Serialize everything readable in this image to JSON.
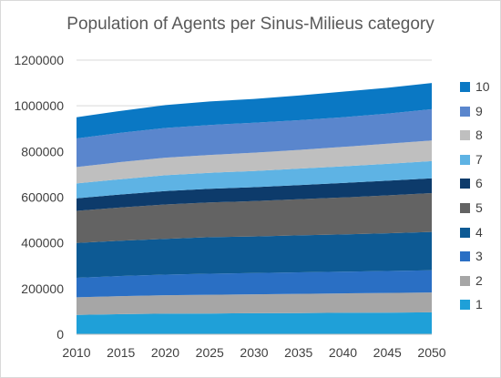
{
  "chart_data": {
    "type": "area",
    "stacked": true,
    "title": "Population of Agents per Sinus-Milieus category",
    "xlabel": "",
    "ylabel": "",
    "x": [
      2010,
      2015,
      2020,
      2025,
      2030,
      2035,
      2040,
      2045,
      2050
    ],
    "xticks": [
      "2010",
      "2015",
      "2020",
      "2025",
      "2030",
      "2035",
      "2040",
      "2045",
      "2050"
    ],
    "yticks": [
      "0",
      "200000",
      "400000",
      "600000",
      "800000",
      "1000000",
      "1200000"
    ],
    "ylim": [
      0,
      1200000
    ],
    "grid": true,
    "legend_position": "right",
    "series": [
      {
        "name": "1",
        "color": "#1fa0d8",
        "values": [
          85000,
          88000,
          90000,
          91000,
          92000,
          93000,
          94000,
          95000,
          96000
        ]
      },
      {
        "name": "2",
        "color": "#a6a6a6",
        "values": [
          77000,
          79000,
          81000,
          82000,
          83000,
          84000,
          85000,
          86000,
          87000
        ]
      },
      {
        "name": "3",
        "color": "#2a6fc4",
        "values": [
          85000,
          88000,
          90000,
          92000,
          93000,
          94000,
          95000,
          96000,
          97000
        ]
      },
      {
        "name": "4",
        "color": "#0d5a94",
        "values": [
          153000,
          155000,
          157000,
          160000,
          160000,
          162000,
          163000,
          165000,
          168000
        ]
      },
      {
        "name": "5",
        "color": "#636363",
        "values": [
          140000,
          145000,
          150000,
          152000,
          155000,
          158000,
          162000,
          166000,
          170000
        ]
      },
      {
        "name": "6",
        "color": "#0d3b6b",
        "values": [
          55000,
          57000,
          59000,
          60000,
          61000,
          62000,
          63000,
          64000,
          65000
        ]
      },
      {
        "name": "7",
        "color": "#5eb3e4",
        "values": [
          65000,
          67000,
          69000,
          70000,
          71000,
          72000,
          73000,
          74000,
          75000
        ]
      },
      {
        "name": "8",
        "color": "#bfbfbf",
        "values": [
          72000,
          75000,
          77000,
          78000,
          80000,
          82000,
          85000,
          88000,
          90000
        ]
      },
      {
        "name": "9",
        "color": "#5a86cd",
        "values": [
          125000,
          128000,
          130000,
          131000,
          131000,
          130000,
          130000,
          132000,
          137000
        ]
      },
      {
        "name": "10",
        "color": "#0a78c4",
        "values": [
          93000,
          96000,
          100000,
          103000,
          104000,
          108000,
          112000,
          113000,
          115000
        ]
      }
    ]
  }
}
